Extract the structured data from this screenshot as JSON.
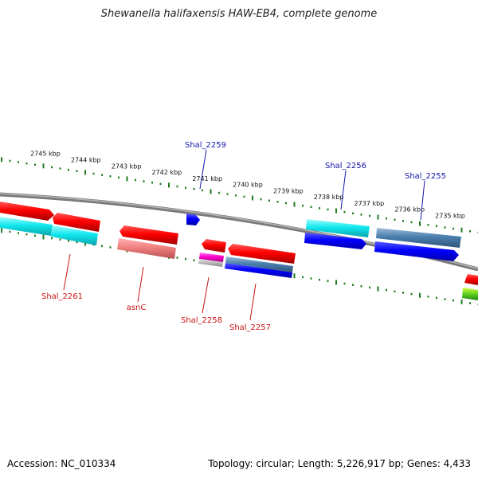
{
  "title": "Shewanella halifaxensis HAW-EB4, complete genome",
  "footer": {
    "accession": "Accession: NC_010334",
    "summary": "Topology: circular; Length: 5,226,917 bp; Genes: 4,433"
  },
  "colors": {
    "backbone": "#8c8c8c",
    "tick": "#1f7a1f",
    "label_blue": "#1515a8",
    "label_red": "#c81414",
    "kbp_label": "#111111"
  },
  "kbp_ticks": [
    {
      "label": "2745 kbp",
      "kbp": 2745
    },
    {
      "label": "2744 kbp",
      "kbp": 2744
    },
    {
      "label": "2743 kbp",
      "kbp": 2743
    },
    {
      "label": "2742 kbp",
      "kbp": 2742
    },
    {
      "label": "2741 kbp",
      "kbp": 2741
    },
    {
      "label": "2740 kbp",
      "kbp": 2740
    },
    {
      "label": "2739 kbp",
      "kbp": 2739
    },
    {
      "label": "2738 kbp",
      "kbp": 2738
    },
    {
      "label": "2737 kbp",
      "kbp": 2737
    },
    {
      "label": "2736 kbp",
      "kbp": 2736
    },
    {
      "label": "2735 kbp",
      "kbp": 2735
    }
  ],
  "gene_labels": [
    {
      "name": "Shal_2259",
      "strand": "forward"
    },
    {
      "name": "Shal_2256",
      "strand": "forward"
    },
    {
      "name": "Shal_2255",
      "strand": "forward"
    },
    {
      "name": "Shal_2261",
      "strand": "reverse"
    },
    {
      "name": "asnC",
      "strand": "reverse"
    },
    {
      "name": "Shal_2258",
      "strand": "reverse"
    },
    {
      "name": "Shal_2257",
      "strand": "reverse"
    }
  ]
}
